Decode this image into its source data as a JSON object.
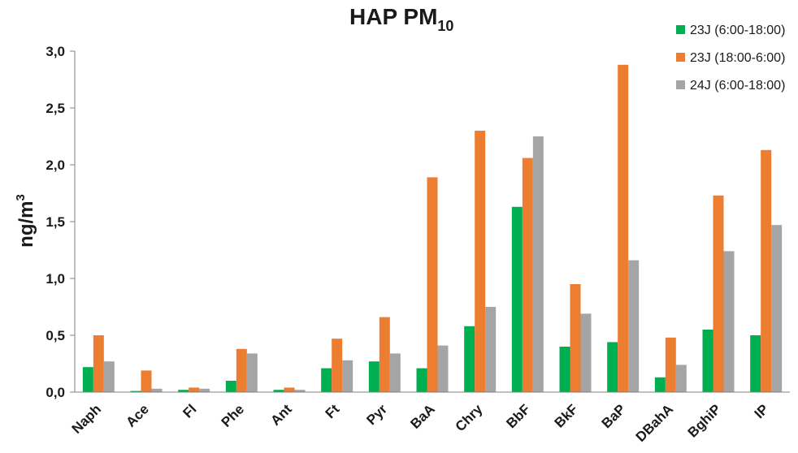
{
  "chart_data": {
    "type": "bar",
    "title": "HAP PM",
    "title_subscript": "10",
    "ylabel": "ng/m",
    "ylabel_superscript": "3",
    "xlabel": "",
    "ylim": [
      0,
      3.0
    ],
    "yticks": [
      "0,0",
      "0,5",
      "1,0",
      "1,5",
      "2,0",
      "2,5",
      "3,0"
    ],
    "ytick_values": [
      0,
      0.5,
      1.0,
      1.5,
      2.0,
      2.5,
      3.0
    ],
    "grid": false,
    "legend_position": "top-right",
    "categories": [
      "Naph",
      "Ace",
      "Fl",
      "Phe",
      "Ant",
      "Ft",
      "Pyr",
      "BaA",
      "Chry",
      "BbF",
      "BkF",
      "BaP",
      "DBahA",
      "BghiP",
      "IP"
    ],
    "series": [
      {
        "name": "23J (6:00-18:00)",
        "color": "#00b050",
        "values": [
          0.22,
          0.01,
          0.02,
          0.1,
          0.02,
          0.21,
          0.27,
          0.21,
          0.58,
          1.63,
          0.4,
          0.44,
          0.13,
          0.55,
          0.5
        ]
      },
      {
        "name": "23J (18:00-6:00)",
        "color": "#ed7d31",
        "values": [
          0.5,
          0.19,
          0.04,
          0.38,
          0.04,
          0.47,
          0.66,
          1.89,
          2.3,
          2.06,
          0.95,
          2.88,
          0.48,
          1.73,
          2.13
        ]
      },
      {
        "name": "24J (6:00-18:00)",
        "color": "#a5a5a5",
        "values": [
          0.27,
          0.03,
          0.03,
          0.34,
          0.02,
          0.28,
          0.34,
          0.41,
          0.75,
          2.25,
          0.69,
          1.16,
          0.24,
          1.24,
          1.47
        ]
      }
    ]
  }
}
